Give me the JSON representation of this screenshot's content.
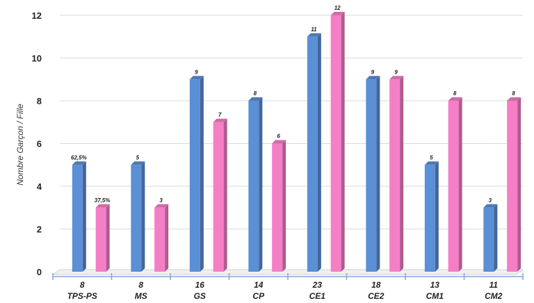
{
  "chart_data": {
    "type": "bar",
    "ylabel": "Nombre Garçon / Fille",
    "ylim": [
      0,
      12
    ],
    "yticks": [
      0,
      2,
      4,
      6,
      8,
      10,
      12
    ],
    "grid": true,
    "colors": {
      "garcon": "#5b8fd6",
      "fille": "#f57fc6"
    },
    "categories": [
      {
        "name": "TPS-PS",
        "total": "8"
      },
      {
        "name": "MS",
        "total": "8"
      },
      {
        "name": "GS",
        "total": "16"
      },
      {
        "name": "CP",
        "total": "14"
      },
      {
        "name": "CE1",
        "total": "23"
      },
      {
        "name": "CE2",
        "total": "18"
      },
      {
        "name": "CM1",
        "total": "13"
      },
      {
        "name": "CM2",
        "total": "11"
      }
    ],
    "bars": [
      {
        "series": "garcon",
        "value": 5,
        "label": "62,5%"
      },
      {
        "series": "fille",
        "value": 3,
        "label": "37,5%"
      },
      {
        "series": "garcon",
        "value": 5,
        "label": "5"
      },
      {
        "series": "fille",
        "value": 3,
        "label": "3"
      },
      {
        "series": "garcon",
        "value": 9,
        "label": "9"
      },
      {
        "series": "fille",
        "value": 7,
        "label": "7"
      },
      {
        "series": "garcon",
        "value": 8,
        "label": "8"
      },
      {
        "series": "fille",
        "value": 6,
        "label": "6"
      },
      {
        "series": "garcon",
        "value": 11,
        "label": "11"
      },
      {
        "series": "fille",
        "value": 12,
        "label": "12"
      },
      {
        "series": "garcon",
        "value": 9,
        "label": "9"
      },
      {
        "series": "fille",
        "value": 9,
        "label": "9"
      },
      {
        "series": "garcon",
        "value": 5,
        "label": "5"
      },
      {
        "series": "fille",
        "value": 8,
        "label": "8"
      },
      {
        "series": "garcon",
        "value": 3,
        "label": "3"
      },
      {
        "series": "fille",
        "value": 8,
        "label": "8"
      }
    ]
  }
}
